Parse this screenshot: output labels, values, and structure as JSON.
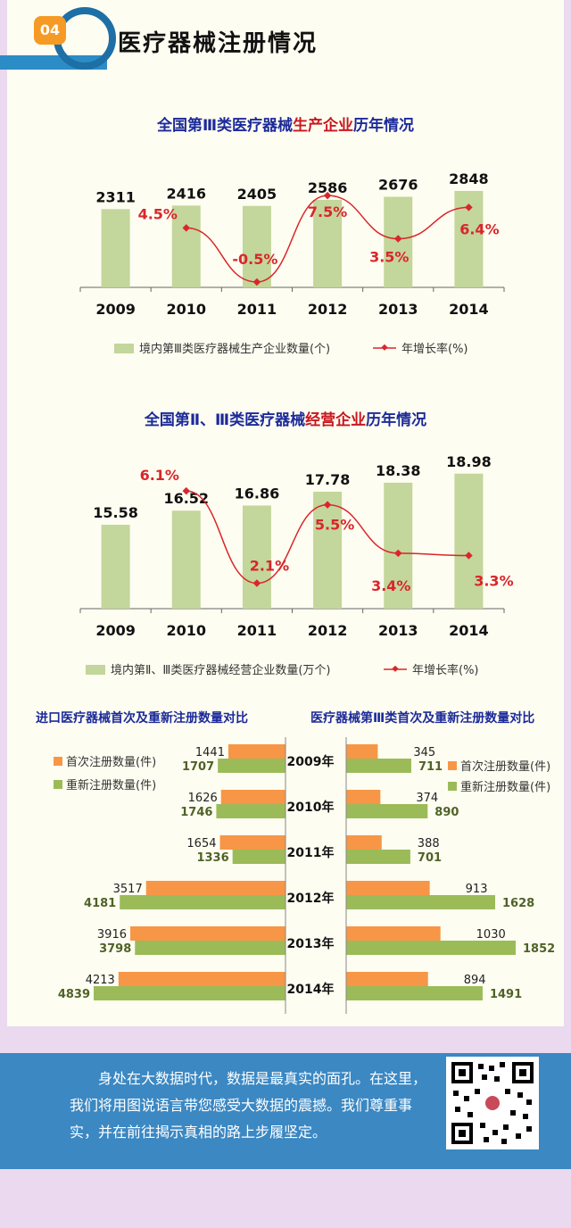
{
  "header": {
    "badge": "04",
    "title": "医疗器械注册情况"
  },
  "chart1": {
    "title_part1": "全国第Ⅲ类医疗器械",
    "title_highlight": "生产企业",
    "title_part2": "历年情况"
  },
  "chart2": {
    "title_part1": "全国第Ⅱ、Ⅲ类医疗器械",
    "title_highlight": "经营企业",
    "title_part2": "历年情况"
  },
  "chart3": {
    "title": "进口医疗器械首次及重新注册数量对比"
  },
  "chart4": {
    "title": "医疗器械第Ⅲ类首次及重新注册数量对比"
  },
  "footer": {
    "text": "身处在大数据时代，数据是最真实的面孔。在这里，我们将用图说语言带您感受大数据的震撼。我们尊重事实，并在前往揭示真相的路上步履坚定。"
  },
  "colors": {
    "bar_green": "#c3d69b",
    "line_red": "#d9262a",
    "bar_orange": "#f79646",
    "bar_green2": "#9bbb59",
    "title_blue": "#1c2a9a"
  },
  "chart_data": [
    {
      "type": "bar",
      "categories": [
        "2009",
        "2010",
        "2011",
        "2012",
        "2013",
        "2014"
      ],
      "series": [
        {
          "name": "境内第Ⅲ类医疗器械生产企业数量(个)",
          "values": [
            2311,
            2416,
            2405,
            2586,
            2676,
            2848
          ],
          "labels": [
            "2311",
            "2416",
            "2405",
            "2586",
            "2676",
            "2848"
          ]
        },
        {
          "name": "年增长率(%)",
          "type": "line",
          "values": [
            null,
            4.5,
            -0.5,
            7.5,
            3.5,
            6.4
          ],
          "labels": [
            "",
            "4.5%",
            "-0.5%",
            "7.5%",
            "3.5%",
            "6.4%"
          ]
        }
      ],
      "legend": "bottom"
    },
    {
      "type": "bar",
      "categories": [
        "2009",
        "2010",
        "2011",
        "2012",
        "2013",
        "2014"
      ],
      "series": [
        {
          "name": "境内第Ⅱ、Ⅲ类医疗器械经营企业数量(万个)",
          "values": [
            15.58,
            16.52,
            16.86,
            17.78,
            18.38,
            18.98
          ],
          "labels": [
            "15.58",
            "16.52",
            "16.86",
            "17.78",
            "18.38",
            "18.98"
          ]
        },
        {
          "name": "年增长率(%)",
          "type": "line",
          "values": [
            null,
            6.1,
            2.1,
            5.5,
            3.4,
            3.3
          ],
          "labels": [
            "",
            "6.1%",
            "2.1%",
            "5.5%",
            "3.4%",
            "3.3%"
          ]
        }
      ],
      "legend": "bottom"
    },
    {
      "type": "bar",
      "orientation": "horizontal",
      "categories": [
        "2009年",
        "2010年",
        "2011年",
        "2012年",
        "2013年",
        "2014年"
      ],
      "series": [
        {
          "name": "首次注册数量(件)",
          "values": [
            1441,
            1626,
            1654,
            3517,
            3916,
            4213
          ]
        },
        {
          "name": "重新注册数量(件)",
          "values": [
            1707,
            1746,
            1336,
            4181,
            3798,
            4839
          ]
        }
      ],
      "legend": "top-left"
    },
    {
      "type": "bar",
      "orientation": "horizontal",
      "categories": [
        "2009年",
        "2010年",
        "2011年",
        "2012年",
        "2013年",
        "2014年"
      ],
      "series": [
        {
          "name": "首次注册数量(件)",
          "values": [
            345,
            374,
            388,
            913,
            1030,
            894
          ]
        },
        {
          "name": "重新注册数量(件)",
          "values": [
            711,
            890,
            701,
            1628,
            1852,
            1491
          ]
        }
      ],
      "legend": "top-right"
    }
  ]
}
